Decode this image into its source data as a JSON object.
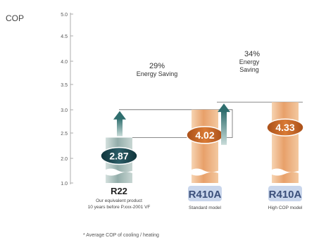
{
  "chart_data": {
    "type": "bar",
    "ylabel": "COP",
    "ylim": [
      1.0,
      5.0
    ],
    "yticks": [
      "5.0",
      "4.5",
      "4.0",
      "3.5",
      "3.0",
      "2.5",
      "2.0",
      "1.0"
    ],
    "grid": false,
    "legend": "none",
    "categories": [
      {
        "value": 2.87,
        "label": "2.87",
        "name": "R22",
        "subtitle_lines": [
          "Our equivalent product",
          "10 years before P.xxx-2001 VF"
        ],
        "color": "#9fb7b4",
        "badge_color": "#1f4e57"
      },
      {
        "value": 4.02,
        "label": "4.02",
        "name": "R410A",
        "subtitle_lines": [
          "Standard model"
        ],
        "color": "#e8a06a",
        "badge_color": "#c8641e"
      },
      {
        "value": 4.33,
        "label": "4.33",
        "name": "R410A",
        "subtitle_lines": [
          "High COP model"
        ],
        "color": "#e8a06a",
        "badge_color": "#c8641e"
      }
    ],
    "annotations": [
      {
        "percent": "29%",
        "text": "Energy Saving"
      },
      {
        "percent": "34%",
        "text": "Energy Saving"
      }
    ],
    "footnote": "* Average COP of cooling / heating"
  }
}
